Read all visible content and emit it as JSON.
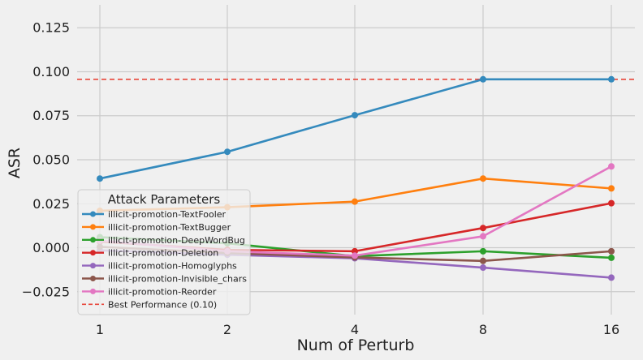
{
  "chart_data": {
    "type": "line",
    "xlabel": "Num of Perturb",
    "ylabel": "ASR",
    "x": [
      1,
      2,
      4,
      8,
      16
    ],
    "x_tick_labels": [
      "1",
      "2",
      "4",
      "8",
      "16"
    ],
    "x_scale": "log2",
    "ylim": [
      -0.038,
      0.138
    ],
    "y_ticks": [
      -0.025,
      0.0,
      0.025,
      0.05,
      0.075,
      0.1,
      0.125
    ],
    "y_tick_labels": [
      "−0.025",
      "0.000",
      "0.025",
      "0.050",
      "0.075",
      "0.100",
      "0.125"
    ],
    "grid": true,
    "legend": {
      "title": "Attack Parameters",
      "placement": "lower-left"
    },
    "series": [
      {
        "name": "illicit-promotion-TextFooler",
        "color": "#348abd",
        "values": [
          0.0393,
          0.0545,
          0.0753,
          0.0957,
          0.0957
        ]
      },
      {
        "name": "illicit-promotion-TextBugger",
        "color": "#ff7f0e",
        "values": [
          0.021,
          0.023,
          0.0262,
          0.0393,
          0.0337
        ]
      },
      {
        "name": "illicit-promotion-DeepWordBug",
        "color": "#2ca02c",
        "values": [
          0.006,
          0.0025,
          -0.0048,
          -0.002,
          -0.0057
        ]
      },
      {
        "name": "illicit-promotion-Deletion",
        "color": "#d62728",
        "values": [
          0.0035,
          -0.0012,
          -0.002,
          0.0112,
          0.0253
        ]
      },
      {
        "name": "illicit-promotion-Homoglyphs",
        "color": "#9467bd",
        "values": [
          -0.0015,
          -0.004,
          -0.006,
          -0.0113,
          -0.017
        ]
      },
      {
        "name": "illicit-promotion-Invisible_chars",
        "color": "#8c564b",
        "values": [
          0.0005,
          -0.003,
          -0.0055,
          -0.0075,
          -0.002
        ]
      },
      {
        "name": "illicit-promotion-Reorder",
        "color": "#e377c2",
        "values": [
          0.004,
          -0.002,
          -0.0045,
          0.0065,
          0.0462
        ]
      }
    ],
    "reference_line": {
      "name": "Best Performance (0.10)",
      "value": 0.0957,
      "color": "#e8463a",
      "style": "dashed"
    }
  }
}
